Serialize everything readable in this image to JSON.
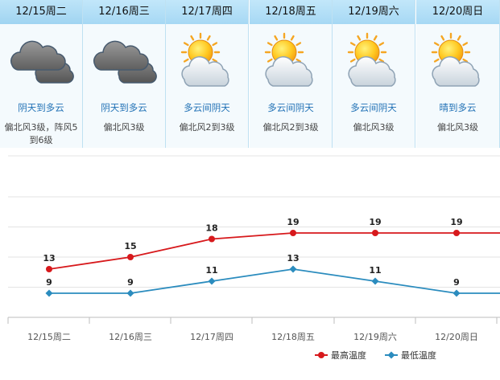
{
  "days": [
    {
      "date": "12/15周二",
      "icon": "overcast-cloud-icon",
      "desc": "阴天到多云",
      "wind": "偏北风3级，阵风5到6级"
    },
    {
      "date": "12/16周三",
      "icon": "overcast-cloud-icon",
      "desc": "阴天到多云",
      "wind": "偏北风3级"
    },
    {
      "date": "12/17周四",
      "icon": "sun-cloud-icon",
      "desc": "多云间阴天",
      "wind": "偏北风2到3级"
    },
    {
      "date": "12/18周五",
      "icon": "sun-cloud-icon",
      "desc": "多云间阴天",
      "wind": "偏北风2到3级"
    },
    {
      "date": "12/19周六",
      "icon": "sun-cloud-icon",
      "desc": "多云间阴天",
      "wind": "偏北风3级"
    },
    {
      "date": "12/20周日",
      "icon": "sun-cloud-icon",
      "desc": "晴到多云",
      "wind": "偏北风3级"
    }
  ],
  "chart_data": {
    "type": "line",
    "categories": [
      "12/15周二",
      "12/16周三",
      "12/17周四",
      "12/18周五",
      "12/19周六",
      "12/20周日"
    ],
    "series": [
      {
        "name": "最高温度",
        "values": [
          13,
          15,
          18,
          19,
          19,
          19
        ],
        "color": "#d7191c"
      },
      {
        "name": "最低温度",
        "values": [
          9,
          9,
          11,
          13,
          11,
          9
        ],
        "color": "#2b8cbe"
      }
    ],
    "ylim": [
      5,
      25
    ],
    "grid": true,
    "legend": "bottom-right"
  }
}
